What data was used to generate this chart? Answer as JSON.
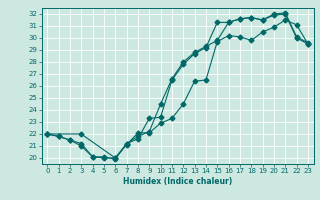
{
  "xlabel": "Humidex (Indice chaleur)",
  "background_color": "#cce8e0",
  "line_color": "#006868",
  "grid_color": "#b0d8d0",
  "xlim": [
    -0.5,
    23.5
  ],
  "ylim": [
    19.5,
    32.5
  ],
  "xticks": [
    0,
    1,
    2,
    3,
    4,
    5,
    6,
    7,
    8,
    9,
    10,
    11,
    12,
    13,
    14,
    15,
    16,
    17,
    18,
    19,
    20,
    21,
    22,
    23
  ],
  "yticks": [
    20,
    21,
    22,
    23,
    24,
    25,
    26,
    27,
    28,
    29,
    30,
    31,
    32
  ],
  "series1_x": [
    0,
    1,
    2,
    3,
    4,
    5,
    6,
    7,
    8,
    9,
    10,
    11,
    12,
    13,
    14,
    15,
    16,
    17,
    18,
    19,
    20,
    21,
    22,
    23
  ],
  "series1_y": [
    22.0,
    21.8,
    21.5,
    21.2,
    20.1,
    20.1,
    19.9,
    21.2,
    21.8,
    22.2,
    24.5,
    26.6,
    28.0,
    28.8,
    29.3,
    29.8,
    31.3,
    31.6,
    31.7,
    31.5,
    32.0,
    32.1,
    30.1,
    29.6
  ],
  "series2_x": [
    0,
    1,
    2,
    3,
    4,
    5,
    6,
    7,
    8,
    9,
    10,
    11,
    12,
    13,
    14,
    15,
    16,
    17,
    18,
    19,
    20,
    21,
    22,
    23
  ],
  "series2_y": [
    22.0,
    21.8,
    21.5,
    21.0,
    20.1,
    20.0,
    20.0,
    21.2,
    21.6,
    23.3,
    23.4,
    26.5,
    27.8,
    28.7,
    29.2,
    31.3,
    31.3,
    31.6,
    31.7,
    31.5,
    31.9,
    32.0,
    30.0,
    29.5
  ],
  "series3_x": [
    0,
    3,
    6,
    7,
    8,
    9,
    10,
    11,
    12,
    13,
    14,
    15,
    16,
    17,
    18,
    19,
    20,
    21,
    22,
    23
  ],
  "series3_y": [
    22.0,
    22.0,
    20.0,
    21.1,
    22.1,
    22.1,
    22.9,
    23.3,
    24.5,
    26.4,
    26.5,
    29.7,
    30.2,
    30.1,
    29.8,
    30.5,
    30.9,
    31.5,
    31.1,
    29.5
  ],
  "tick_fontsize": 5.0,
  "xlabel_fontsize": 5.5
}
